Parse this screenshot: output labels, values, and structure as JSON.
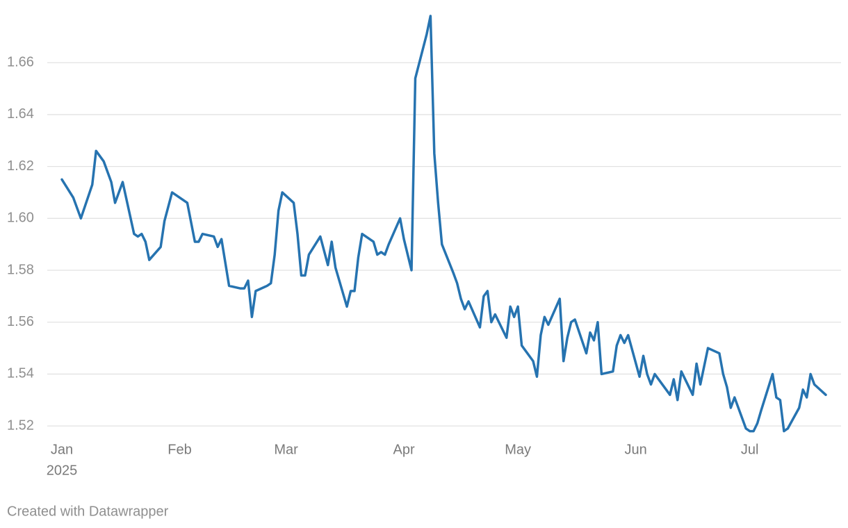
{
  "chart_data": {
    "type": "line",
    "x": [
      0,
      3,
      5,
      8,
      9,
      11,
      12,
      13,
      14,
      16,
      19,
      20,
      21,
      22,
      23,
      26,
      27,
      29,
      30,
      33,
      35,
      36,
      37,
      40,
      41,
      42,
      44,
      47,
      48,
      49,
      50,
      51,
      54,
      55,
      56,
      57,
      58,
      61,
      62,
      63,
      64,
      65,
      68,
      70,
      71,
      72,
      75,
      76,
      77,
      78,
      79,
      82,
      83,
      84,
      85,
      86,
      89,
      90,
      92,
      93,
      96,
      97,
      98,
      99,
      100,
      103,
      104,
      105,
      106,
      107,
      110,
      111,
      112,
      113,
      114,
      117,
      118,
      119,
      120,
      121,
      124,
      125,
      126,
      127,
      128,
      131,
      132,
      133,
      134,
      135,
      138,
      139,
      140,
      141,
      142,
      145,
      146,
      147,
      148,
      149,
      152,
      153,
      154,
      155,
      156,
      159,
      160,
      161,
      162,
      163,
      166,
      167,
      168,
      170,
      173,
      174,
      175,
      176,
      177,
      180,
      181,
      182,
      183,
      184,
      187,
      188,
      189,
      190,
      191,
      194,
      195,
      196,
      197,
      198,
      201
    ],
    "values": [
      1.615,
      1.608,
      1.6,
      1.613,
      1.626,
      1.622,
      1.618,
      1.614,
      1.606,
      1.614,
      1.594,
      1.593,
      1.594,
      1.591,
      1.584,
      1.589,
      1.599,
      1.61,
      1.609,
      1.606,
      1.591,
      1.591,
      1.594,
      1.593,
      1.589,
      1.592,
      1.574,
      1.573,
      1.573,
      1.576,
      1.562,
      1.572,
      1.574,
      1.575,
      1.586,
      1.603,
      1.61,
      1.606,
      1.594,
      1.578,
      1.578,
      1.586,
      1.593,
      1.582,
      1.591,
      1.581,
      1.566,
      1.572,
      1.572,
      1.585,
      1.594,
      1.591,
      1.586,
      1.587,
      1.586,
      1.59,
      1.6,
      1.592,
      1.58,
      1.654,
      1.671,
      1.678,
      1.625,
      1.606,
      1.59,
      1.579,
      1.575,
      1.569,
      1.565,
      1.568,
      1.558,
      1.57,
      1.572,
      1.56,
      1.563,
      1.554,
      1.566,
      1.562,
      1.566,
      1.551,
      1.545,
      1.539,
      1.555,
      1.562,
      1.559,
      1.569,
      1.545,
      1.554,
      1.56,
      1.561,
      1.548,
      1.556,
      1.553,
      1.56,
      1.54,
      1.541,
      1.551,
      1.555,
      1.552,
      1.555,
      1.539,
      1.547,
      1.54,
      1.536,
      1.54,
      1.534,
      1.532,
      1.538,
      1.53,
      1.541,
      1.532,
      1.544,
      1.536,
      1.55,
      1.548,
      1.54,
      1.535,
      1.527,
      1.531,
      1.519,
      1.518,
      1.518,
      1.521,
      1.526,
      1.54,
      1.531,
      1.53,
      1.518,
      1.519,
      1.527,
      1.534,
      1.531,
      1.54,
      1.536,
      1.532
    ],
    "color": "#2673b0",
    "xlim": [
      0,
      201
    ],
    "xticks": [
      {
        "value": 0,
        "label": "Jan"
      },
      {
        "value": 31,
        "label": "Feb"
      },
      {
        "value": 59,
        "label": "Mar"
      },
      {
        "value": 90,
        "label": "Apr"
      },
      {
        "value": 120,
        "label": "May"
      },
      {
        "value": 151,
        "label": "Jun"
      },
      {
        "value": 181,
        "label": "Jul"
      }
    ],
    "x_year_label": "2025",
    "ylim": [
      1.512,
      1.678
    ],
    "yticks": [
      {
        "value": 1.52,
        "label": "1.52"
      },
      {
        "value": 1.54,
        "label": "1.54"
      },
      {
        "value": 1.56,
        "label": "1.56"
      },
      {
        "value": 1.58,
        "label": "1.58"
      },
      {
        "value": 1.6,
        "label": "1.60"
      },
      {
        "value": 1.62,
        "label": "1.62"
      },
      {
        "value": 1.64,
        "label": "1.64"
      },
      {
        "value": 1.66,
        "label": "1.66"
      }
    ],
    "grid": true,
    "footer": "Created with Datawrapper"
  }
}
